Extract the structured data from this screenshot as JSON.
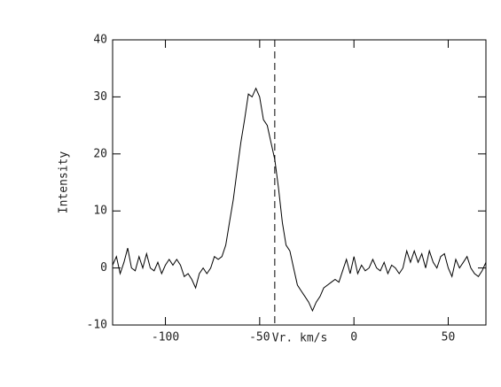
{
  "chart_data": {
    "type": "line",
    "x_label": "Vr. km/s",
    "y_label": "Intensity",
    "x": [
      -128,
      -126,
      -124,
      -122,
      -120,
      -118,
      -116,
      -114,
      -112,
      -110,
      -108,
      -106,
      -104,
      -102,
      -100,
      -98,
      -96,
      -94,
      -92,
      -90,
      -88,
      -86,
      -84,
      -82,
      -80,
      -78,
      -76,
      -74,
      -72,
      -70,
      -68,
      -66,
      -64,
      -62,
      -60,
      -58,
      -56,
      -54,
      -52,
      -50,
      -48,
      -46,
      -44,
      -42,
      -40,
      -38,
      -36,
      -34,
      -32,
      -30,
      -28,
      -26,
      -24,
      -22,
      -20,
      -18,
      -16,
      -14,
      -12,
      -10,
      -8,
      -6,
      -4,
      -2,
      0,
      2,
      4,
      6,
      8,
      10,
      12,
      14,
      16,
      18,
      20,
      22,
      24,
      26,
      28,
      30,
      32,
      34,
      36,
      38,
      40,
      42,
      44,
      46,
      48,
      50,
      52,
      54,
      56,
      58,
      60,
      62,
      64,
      66,
      68,
      70
    ],
    "values": [
      0.5,
      2,
      -1,
      1,
      3.5,
      0,
      -0.5,
      2,
      0,
      2.5,
      0,
      -0.5,
      1,
      -1,
      0.5,
      1.5,
      0.5,
      1.5,
      0.5,
      -1.5,
      -1,
      -2,
      -3.5,
      -1,
      0,
      -1,
      0,
      2,
      1.5,
      2,
      4,
      8,
      12,
      17,
      22,
      26,
      30.5,
      30,
      31.5,
      30,
      26,
      25,
      22,
      19,
      14,
      8,
      4,
      3,
      0,
      -3,
      -4,
      -5,
      -6,
      -7.5,
      -6,
      -5,
      -3.5,
      -3,
      -2.5,
      -2,
      -2.5,
      -0.5,
      1.5,
      -1,
      2,
      -1,
      0.5,
      -0.5,
      0,
      1.5,
      0,
      -0.5,
      1,
      -1,
      0.5,
      0,
      -1,
      0,
      3,
      1,
      3,
      1,
      2.5,
      0,
      3,
      1,
      0,
      2,
      2.5,
      0,
      -1.5,
      1.5,
      0,
      1,
      2,
      0,
      -1,
      -1.5,
      -0.5,
      1
    ],
    "color": "#000000",
    "vline": -42,
    "xlim": [
      -128,
      70
    ],
    "xticks": [
      -100,
      -50,
      0,
      50
    ],
    "ylim": [
      -10,
      40
    ],
    "yticks": [
      -10,
      0,
      10,
      20,
      30,
      40
    ]
  }
}
